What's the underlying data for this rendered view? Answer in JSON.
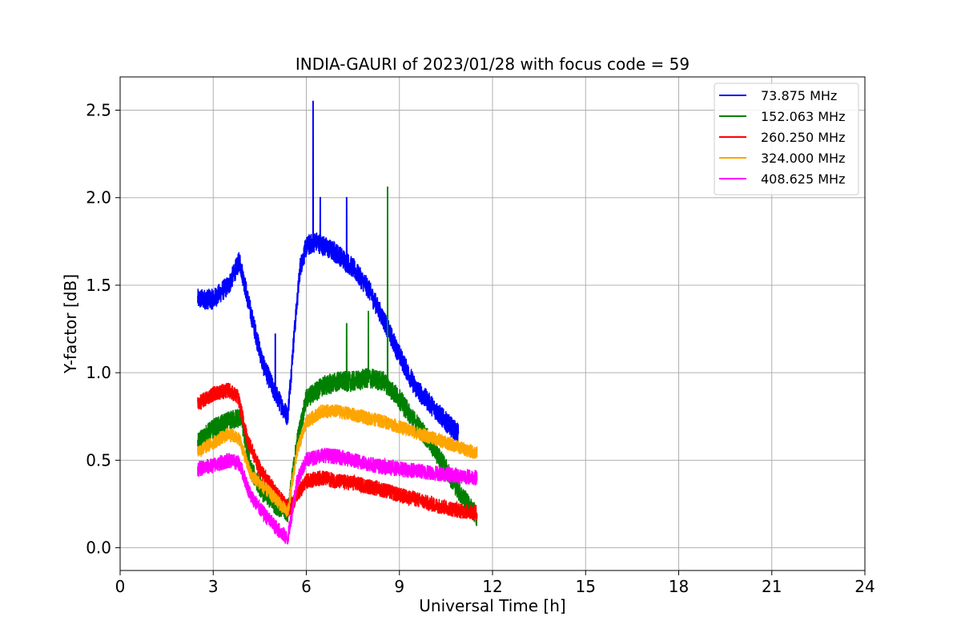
{
  "chart_data": {
    "type": "line",
    "title": "INDIA-GAURI of 2023/01/28 with focus code = 59",
    "xlabel": "Universal Time [h]",
    "ylabel": "Y-factor [dB]",
    "xlim": [
      0,
      24
    ],
    "ylim": [
      -0.13,
      2.69
    ],
    "xticks": [
      0,
      3,
      6,
      9,
      12,
      15,
      18,
      21,
      24
    ],
    "yticks": [
      0.0,
      0.5,
      1.0,
      1.5,
      2.0,
      2.5
    ],
    "xtick_labels": [
      "0",
      "3",
      "6",
      "9",
      "12",
      "15",
      "18",
      "21",
      "24"
    ],
    "ytick_labels": [
      "0.0",
      "0.5",
      "1.0",
      "1.5",
      "2.0",
      "2.5"
    ],
    "grid": true,
    "legend_position": "top-right",
    "series": [
      {
        "name": " 73.875 MHz",
        "color": "#0000ff",
        "x": [
          2.5,
          3.0,
          3.5,
          3.85,
          4.2,
          4.6,
          5.0,
          5.4,
          5.6,
          5.8,
          6.0,
          6.3,
          6.6,
          7.0,
          7.5,
          8.0,
          8.5,
          9.0,
          9.5,
          10.0,
          10.5,
          10.9
        ],
        "y": [
          1.42,
          1.42,
          1.5,
          1.64,
          1.35,
          1.05,
          0.88,
          0.75,
          1.2,
          1.6,
          1.72,
          1.75,
          1.72,
          1.68,
          1.6,
          1.48,
          1.3,
          1.1,
          0.92,
          0.82,
          0.72,
          0.65
        ],
        "noise": 0.06
      },
      {
        "name": "152.063 MHz",
        "color": "#008000",
        "x": [
          2.5,
          3.0,
          3.5,
          3.9,
          4.2,
          4.6,
          5.0,
          5.4,
          5.7,
          6.0,
          6.5,
          7.0,
          7.5,
          8.0,
          8.5,
          9.0,
          9.5,
          10.0,
          10.5,
          11.0,
          11.5
        ],
        "y": [
          0.6,
          0.68,
          0.72,
          0.75,
          0.45,
          0.32,
          0.25,
          0.2,
          0.6,
          0.85,
          0.92,
          0.95,
          0.95,
          0.97,
          0.95,
          0.85,
          0.72,
          0.6,
          0.45,
          0.3,
          0.18
        ],
        "noise": 0.06
      },
      {
        "name": "260.250 MHz",
        "color": "#ff0000",
        "x": [
          2.5,
          3.0,
          3.5,
          3.8,
          4.1,
          4.5,
          5.0,
          5.45,
          5.7,
          6.0,
          6.5,
          7.0,
          7.5,
          8.0,
          8.5,
          9.0,
          9.5,
          10.0,
          10.5,
          11.0,
          11.5
        ],
        "y": [
          0.82,
          0.88,
          0.9,
          0.86,
          0.62,
          0.45,
          0.32,
          0.22,
          0.3,
          0.38,
          0.4,
          0.38,
          0.37,
          0.35,
          0.33,
          0.3,
          0.28,
          0.25,
          0.23,
          0.21,
          0.2
        ],
        "noise": 0.045
      },
      {
        "name": "324.000 MHz",
        "color": "#ffa500",
        "x": [
          2.5,
          3.0,
          3.5,
          3.85,
          4.2,
          4.6,
          5.0,
          5.4,
          5.7,
          6.0,
          6.5,
          7.0,
          7.5,
          8.0,
          8.5,
          9.0,
          9.5,
          10.0,
          10.5,
          11.0,
          11.5
        ],
        "y": [
          0.55,
          0.6,
          0.65,
          0.62,
          0.42,
          0.35,
          0.28,
          0.2,
          0.55,
          0.72,
          0.78,
          0.78,
          0.76,
          0.74,
          0.72,
          0.69,
          0.66,
          0.63,
          0.6,
          0.57,
          0.54
        ],
        "noise": 0.04
      },
      {
        "name": "408.625 MHz",
        "color": "#ff00ff",
        "x": [
          2.5,
          3.0,
          3.5,
          3.85,
          4.2,
          4.6,
          5.0,
          5.4,
          5.7,
          6.0,
          6.5,
          7.0,
          7.5,
          8.0,
          8.5,
          9.0,
          9.5,
          10.0,
          10.5,
          11.0,
          11.5
        ],
        "y": [
          0.45,
          0.47,
          0.5,
          0.48,
          0.3,
          0.2,
          0.12,
          0.05,
          0.38,
          0.5,
          0.53,
          0.52,
          0.5,
          0.48,
          0.46,
          0.45,
          0.44,
          0.43,
          0.42,
          0.41,
          0.4
        ],
        "noise": 0.045
      }
    ],
    "spikes": [
      {
        "series": 0,
        "x": 6.22,
        "y": 2.55
      },
      {
        "series": 0,
        "x": 6.45,
        "y": 2.0
      },
      {
        "series": 0,
        "x": 7.3,
        "y": 2.0
      },
      {
        "series": 1,
        "x": 8.62,
        "y": 2.06
      },
      {
        "series": 1,
        "x": 8.0,
        "y": 1.35
      },
      {
        "series": 1,
        "x": 7.3,
        "y": 1.28
      },
      {
        "series": 0,
        "x": 5.0,
        "y": 1.22
      }
    ]
  }
}
